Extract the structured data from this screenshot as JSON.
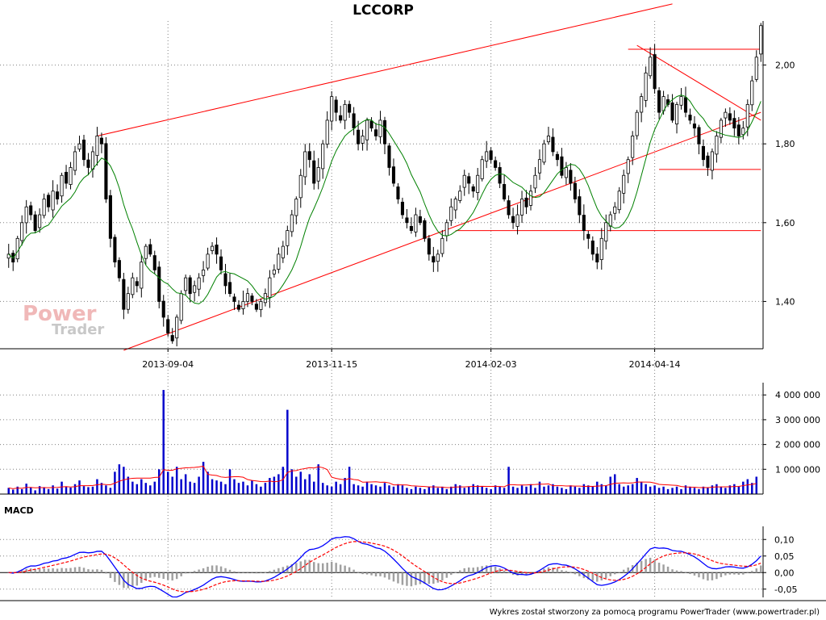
{
  "chart_data": {
    "type": "candlestick",
    "title": "LCCORP",
    "x_tick_labels": [
      "2013-09-04",
      "2013-11-15",
      "2014-02-03",
      "2014-04-14"
    ],
    "price_axis": {
      "ticks": [
        "1,40",
        "1,60",
        "1,80",
        "2,00"
      ],
      "ylim": [
        1.28,
        2.12
      ]
    },
    "price_close": [
      1.52,
      1.5,
      1.56,
      1.6,
      1.64,
      1.62,
      1.58,
      1.62,
      1.66,
      1.64,
      1.68,
      1.66,
      1.72,
      1.7,
      1.74,
      1.78,
      1.8,
      1.76,
      1.74,
      1.78,
      1.82,
      1.8,
      1.66,
      1.56,
      1.5,
      1.46,
      1.38,
      1.42,
      1.46,
      1.44,
      1.5,
      1.54,
      1.52,
      1.48,
      1.4,
      1.36,
      1.32,
      1.3,
      1.36,
      1.42,
      1.46,
      1.42,
      1.44,
      1.46,
      1.48,
      1.52,
      1.54,
      1.52,
      1.48,
      1.44,
      1.42,
      1.4,
      1.38,
      1.4,
      1.42,
      1.4,
      1.38,
      1.4,
      1.42,
      1.46,
      1.48,
      1.52,
      1.54,
      1.58,
      1.62,
      1.66,
      1.72,
      1.78,
      1.76,
      1.7,
      1.74,
      1.8,
      1.86,
      1.92,
      1.88,
      1.86,
      1.9,
      1.88,
      1.84,
      1.8,
      1.82,
      1.86,
      1.84,
      1.82,
      1.86,
      1.8,
      1.74,
      1.7,
      1.66,
      1.62,
      1.6,
      1.58,
      1.62,
      1.6,
      1.56,
      1.52,
      1.5,
      1.52,
      1.56,
      1.6,
      1.64,
      1.66,
      1.68,
      1.72,
      1.7,
      1.68,
      1.72,
      1.76,
      1.78,
      1.76,
      1.74,
      1.7,
      1.66,
      1.62,
      1.6,
      1.62,
      1.66,
      1.64,
      1.68,
      1.72,
      1.76,
      1.8,
      1.82,
      1.78,
      1.76,
      1.72,
      1.74,
      1.7,
      1.66,
      1.62,
      1.58,
      1.56,
      1.52,
      1.5,
      1.56,
      1.6,
      1.62,
      1.64,
      1.68,
      1.72,
      1.76,
      1.82,
      1.88,
      1.92,
      1.98,
      2.02,
      1.94,
      1.88,
      1.92,
      1.9,
      1.86,
      1.9,
      1.92,
      1.88,
      1.86,
      1.84,
      1.8,
      1.76,
      1.74,
      1.78,
      1.82,
      1.86,
      1.88,
      1.86,
      1.84,
      1.82,
      1.84,
      1.9,
      1.96,
      2.02,
      2.1
    ],
    "ma_line": {
      "color": "#008000",
      "period": 10
    },
    "volume_axis": {
      "ticks": [
        "1 000 000",
        "2 000 000",
        "3 000 000",
        "4 000 000"
      ],
      "ylim": [
        0,
        4300000
      ]
    },
    "volume": [
      250000,
      180000,
      300000,
      200000,
      420000,
      260000,
      150000,
      320000,
      280000,
      200000,
      350000,
      220000,
      500000,
      300000,
      260000,
      400000,
      550000,
      320000,
      280000,
      300000,
      600000,
      450000,
      350000,
      250000,
      900000,
      1200000,
      1100000,
      700000,
      500000,
      400000,
      600000,
      450000,
      350000,
      500000,
      1000000,
      4200000,
      900000,
      700000,
      1100000,
      600000,
      800000,
      500000,
      450000,
      700000,
      1300000,
      900000,
      600000,
      550000,
      500000,
      400000,
      1000000,
      600000,
      450000,
      500000,
      350000,
      550000,
      400000,
      300000,
      450000,
      650000,
      700000,
      800000,
      1100000,
      3400000,
      1000000,
      700000,
      900000,
      600000,
      800000,
      500000,
      1200000,
      450000,
      350000,
      300000,
      500000,
      400000,
      650000,
      1100000,
      400000,
      350000,
      300000,
      500000,
      400000,
      350000,
      300000,
      450000,
      350000,
      300000,
      400000,
      350000,
      250000,
      200000,
      300000,
      250000,
      200000,
      300000,
      350000,
      250000,
      300000,
      200000,
      300000,
      400000,
      350000,
      250000,
      300000,
      400000,
      350000,
      300000,
      250000,
      200000,
      350000,
      300000,
      250000,
      1100000,
      300000,
      250000,
      350000,
      300000,
      400000,
      250000,
      500000,
      300000,
      350000,
      400000,
      300000,
      250000,
      200000,
      350000,
      300000,
      250000,
      400000,
      350000,
      300000,
      500000,
      400000,
      350000,
      700000,
      800000,
      400000,
      300000,
      350000,
      400000,
      650000,
      500000,
      400000,
      300000,
      350000,
      250000,
      300000,
      200000,
      250000,
      300000,
      200000,
      350000,
      300000,
      250000,
      200000,
      300000,
      250000,
      350000,
      400000,
      300000,
      250000,
      350000,
      400000,
      300000,
      500000,
      600000,
      450000,
      700000
    ],
    "volume_ma": {
      "color": "#ff0000"
    },
    "macd_label": "MACD",
    "macd_axis": {
      "ticks": [
        "-0,05",
        "0,00",
        "0,05",
        "0,10"
      ],
      "ylim": [
        -0.075,
        0.125
      ]
    },
    "macd_colors": {
      "macd": "#0000ff",
      "signal": "#ff0000",
      "histogram": "#a0a0a0"
    },
    "footer": "Wykres został stworzony za pomocą programu PowerTrader (www.powertrader.pl)",
    "watermark": {
      "line1": "Power",
      "line2": "Trader"
    },
    "colors": {
      "up": "#ffffff",
      "down": "#000000",
      "trendlines": "#ff0000",
      "grid": "#808080",
      "volume": "#0000cc"
    }
  }
}
